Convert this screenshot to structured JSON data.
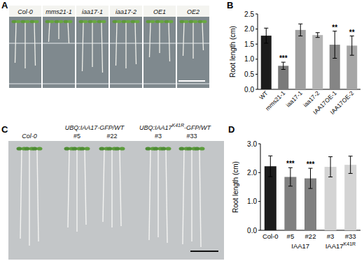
{
  "chart_data": [
    {
      "panel_label": "B",
      "type": "bar",
      "y_label": "Root length (cm)",
      "categories": [
        "WT",
        "mms21-1",
        "iaa17-1",
        "iaa17-2",
        "IAA17OE-1",
        "IAA17OE-2"
      ],
      "values": [
        1.78,
        0.78,
        1.97,
        1.8,
        1.48,
        1.45
      ],
      "errors": [
        0.25,
        0.12,
        0.2,
        0.08,
        0.45,
        0.32
      ],
      "significance": [
        null,
        "***",
        null,
        null,
        "**",
        "**"
      ],
      "colors": [
        "#1c1c1c",
        "#7a7a7a",
        "#a0a0a0",
        "#b4b4b4",
        "#858585",
        "#a6a6a6"
      ],
      "ylim": [
        0,
        2.5
      ],
      "yticks": [
        {
          "value": 0,
          "label": "0.0"
        },
        0.5,
        {
          "value": 1,
          "label": "1.0"
        },
        1.5,
        {
          "value": 2,
          "label": "2.0"
        },
        2.5
      ]
    },
    {
      "panel_label": "D",
      "type": "bar",
      "y_label": "Root length (cm)",
      "categories": [
        "Col-0",
        "#5",
        "#22",
        "#3",
        "#33"
      ],
      "groups": [
        {
          "label": [
            {
              "text": "IAA17"
            }
          ],
          "categories": [
            "#5",
            "#22"
          ]
        },
        {
          "label": [
            {
              "text": "IAA17"
            },
            {
              "text": "K41R",
              "sup": true
            }
          ],
          "categories": [
            "#3",
            "#33"
          ]
        }
      ],
      "values": [
        2.22,
        1.85,
        1.8,
        2.2,
        2.27
      ],
      "errors": [
        0.36,
        0.32,
        0.35,
        0.35,
        0.3
      ],
      "significance": [
        null,
        "***",
        "***",
        null,
        null
      ],
      "colors": [
        "#1c1c1c",
        "#808080",
        "#808080",
        "#d4d4d4",
        "#d4d4d4"
      ],
      "ylim": [
        0,
        3
      ],
      "yticks": [
        {
          "value": 0,
          "label": "0.0"
        },
        {
          "value": 1,
          "label": "1.0"
        },
        {
          "value": 2,
          "label": "2.0"
        },
        {
          "value": 3,
          "label": "3.0"
        }
      ]
    }
  ],
  "photos": [
    {
      "panel_label": "A",
      "labels": [
        "Col-0",
        "mms21-1",
        "iaa17-1",
        "iaa17-2",
        "OE1",
        "OE2"
      ]
    },
    {
      "panel_label": "C",
      "columns": [
        {
          "label": [
            {
              "text": "Col-0"
            }
          ]
        },
        {
          "label": [
            {
              "text": "UBQ:IAA17-GFP/WT"
            }
          ],
          "subs": [
            "#5",
            "#22"
          ]
        },
        {
          "label": [
            {
              "text": "UBQ:IAA17"
            },
            {
              "text": "K41R",
              "sup": true
            },
            {
              "text": "-GFP/WT"
            }
          ],
          "subs": [
            "#3",
            "#33"
          ]
        }
      ]
    }
  ]
}
